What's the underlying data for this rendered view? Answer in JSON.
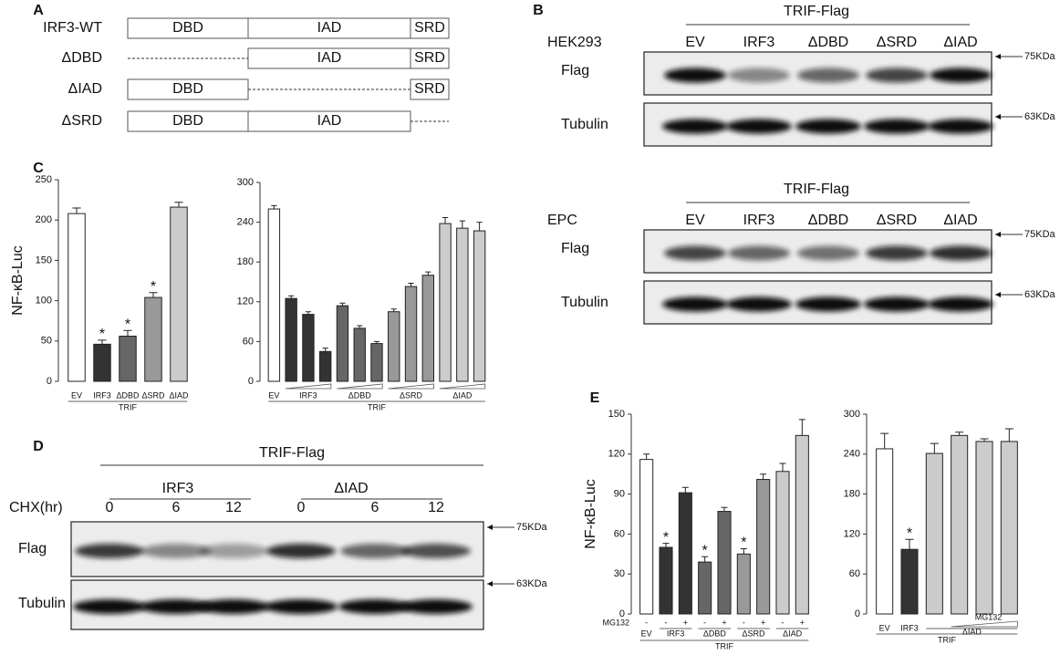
{
  "panel_a": {
    "label": "A",
    "rows": [
      {
        "label": "IRF3-WT",
        "texts": [
          "DBD",
          "IAD",
          "SRD"
        ]
      },
      {
        "label": "ΔDBD",
        "texts": [
          "IAD",
          "SRD"
        ]
      },
      {
        "label": "ΔIAD",
        "texts": [
          "DBD",
          "SRD"
        ]
      },
      {
        "label": "ΔSRD",
        "texts": [
          "DBD",
          "IAD"
        ]
      }
    ]
  },
  "panel_b": {
    "label": "B",
    "blots": [
      {
        "cell": "HEK293",
        "header": "TRIF-Flag",
        "lanes": [
          "EV",
          "IRF3",
          "ΔDBD",
          "ΔSRD",
          "ΔIAD"
        ],
        "rows": [
          "Flag",
          "Tubulin"
        ],
        "markers": [
          "75KDa",
          "63KDa"
        ]
      },
      {
        "cell": "EPC",
        "header": "TRIF-Flag",
        "lanes": [
          "EV",
          "IRF3",
          "ΔDBD",
          "ΔSRD",
          "ΔIAD"
        ],
        "rows": [
          "Flag",
          "Tubulin"
        ],
        "markers": [
          "75KDa",
          "63KDa"
        ]
      }
    ]
  },
  "panel_d": {
    "label": "D",
    "header": "TRIF-Flag",
    "groups": [
      "IRF3",
      "ΔIAD"
    ],
    "time_label": "CHX(hr)",
    "times": [
      "0",
      "6",
      "12",
      "0",
      "6",
      "12"
    ],
    "rows": [
      "Flag",
      "Tubulin"
    ],
    "markers": [
      "75KDa",
      "63KDa"
    ]
  },
  "chart_data": [
    {
      "type": "bar",
      "panel": "C",
      "ylabel": "NF-κB-Luc",
      "categories": [
        "EV",
        "IRF3",
        "ΔDBD",
        "ΔSRD",
        "ΔIAD"
      ],
      "values": [
        208,
        46,
        56,
        104,
        216
      ],
      "errors": [
        7,
        5,
        7,
        6,
        6
      ],
      "stars": [
        null,
        "*",
        "*",
        "*",
        null
      ],
      "colors": [
        "#ffffff",
        "#333333",
        "#666666",
        "#999999",
        "#cccccc"
      ],
      "ylim": [
        0,
        250
      ],
      "yticks": [
        0,
        50,
        100,
        150,
        200,
        250
      ],
      "group_label": "TRIF"
    },
    {
      "type": "bar",
      "categories": [
        "EV",
        null,
        "IRF3",
        null,
        null,
        "ΔDBD",
        null,
        null,
        "ΔSRD",
        null,
        null,
        "ΔIAD",
        null
      ],
      "values": [
        260,
        125,
        101,
        45,
        114,
        80,
        57,
        105,
        143,
        160,
        238,
        231,
        227
      ],
      "errors": [
        5,
        4,
        4,
        5,
        4,
        4,
        3,
        4,
        5,
        5,
        9,
        11,
        13
      ],
      "colors": [
        "#ffffff",
        "#333333",
        "#333333",
        "#333333",
        "#666666",
        "#666666",
        "#666666",
        "#999999",
        "#999999",
        "#999999",
        "#cccccc",
        "#cccccc",
        "#cccccc"
      ],
      "ylim": [
        0,
        300
      ],
      "yticks": [
        0,
        60,
        120,
        180,
        240,
        300
      ],
      "group_label": "TRIF"
    },
    {
      "type": "bar",
      "panel": "E",
      "ylabel": "NF-κB-Luc",
      "sign_label": "MG132",
      "groups": [
        {
          "name": "EV",
          "signs": [
            "-"
          ]
        },
        {
          "name": "IRF3",
          "signs": [
            "-",
            "+"
          ]
        },
        {
          "name": "ΔDBD",
          "signs": [
            "-",
            "+"
          ]
        },
        {
          "name": "ΔSRD",
          "signs": [
            "-",
            "+"
          ]
        },
        {
          "name": "ΔIAD",
          "signs": [
            "-",
            "+"
          ]
        }
      ],
      "values": [
        116,
        50,
        91,
        39,
        77,
        45,
        101,
        107,
        134
      ],
      "errors": [
        4,
        3,
        4,
        4,
        3,
        4,
        4,
        6,
        12
      ],
      "stars": [
        null,
        "*",
        null,
        "*",
        null,
        "*",
        null,
        null,
        null
      ],
      "colors": [
        "#ffffff",
        "#333333",
        "#333333",
        "#666666",
        "#666666",
        "#999999",
        "#999999",
        "#cccccc",
        "#cccccc"
      ],
      "ylim": [
        0,
        150
      ],
      "yticks": [
        0,
        30,
        60,
        90,
        120,
        150
      ],
      "group_label": "TRIF"
    },
    {
      "type": "bar",
      "categories": [
        "EV",
        "IRF3",
        null,
        null,
        null,
        null
      ],
      "values": [
        248,
        97,
        241,
        268,
        259,
        259
      ],
      "errors": [
        23,
        15,
        15,
        5,
        4,
        19
      ],
      "stars": [
        null,
        "*",
        null,
        null,
        null,
        null
      ],
      "colors": [
        "#ffffff",
        "#333333",
        "#cccccc",
        "#cccccc",
        "#cccccc",
        "#cccccc"
      ],
      "ylim": [
        0,
        300
      ],
      "yticks": [
        0,
        60,
        120,
        180,
        240,
        300
      ],
      "sub_label": "ΔIAD",
      "gradient_label": "MG132",
      "group_label": "TRIF"
    }
  ]
}
